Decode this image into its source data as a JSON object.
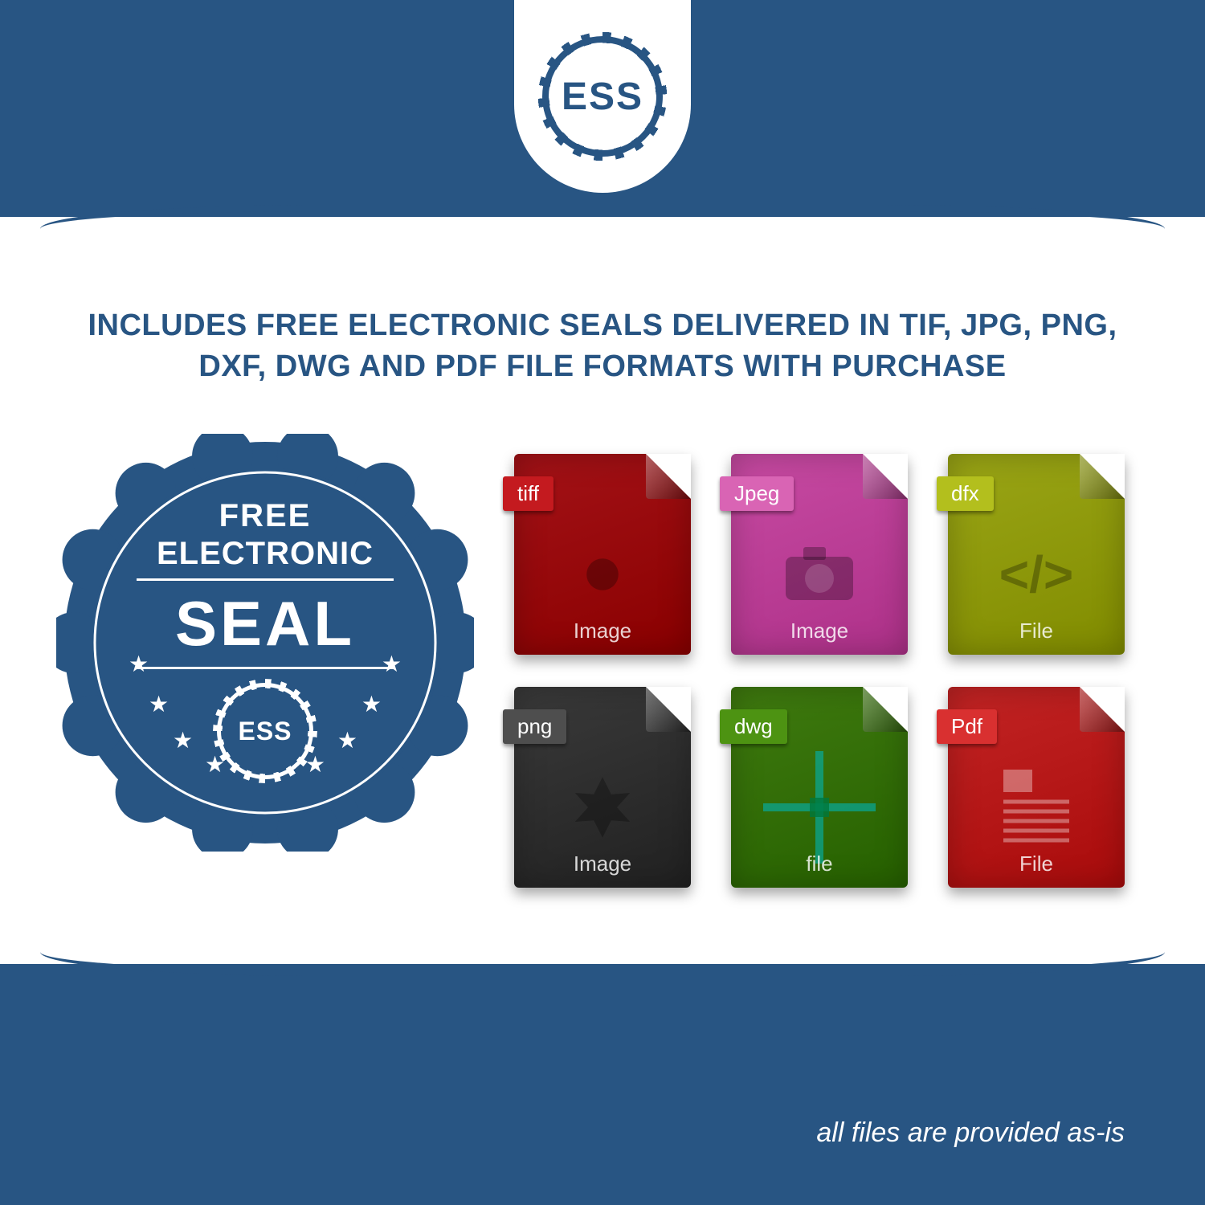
{
  "colors": {
    "primary": "#285583",
    "white": "#ffffff"
  },
  "logo": {
    "text": "ESS"
  },
  "headline": "INCLUDES FREE ELECTRONIC SEALS DELIVERED IN TIF, JPG, PNG, DXF, DWG AND PDF FILE FORMATS WITH PURCHASE",
  "seal": {
    "line1": "FREE",
    "line2": "ELECTRONIC",
    "line3": "SEAL",
    "gear_text": "ESS",
    "badge_color": "#285583",
    "text_color": "#ffffff",
    "star_count": 8
  },
  "files": [
    {
      "label": "tiff",
      "footer": "Image",
      "bg": "#a31217",
      "tab_bg": "#c41a1f",
      "glyph": "gear"
    },
    {
      "label": "Jpeg",
      "footer": "Image",
      "bg": "#c74aa2",
      "tab_bg": "#d964b4",
      "glyph": "camera"
    },
    {
      "label": "dfx",
      "footer": "File",
      "bg": "#9aa516",
      "tab_bg": "#b3bf1d",
      "glyph": "code"
    },
    {
      "label": "png",
      "footer": "Image",
      "bg": "#3a3a3a",
      "tab_bg": "#4e4e4e",
      "glyph": "burst"
    },
    {
      "label": "dwg",
      "footer": "file",
      "bg": "#3f7a0f",
      "tab_bg": "#4d9312",
      "glyph": "cross"
    },
    {
      "label": "Pdf",
      "footer": "File",
      "bg": "#c22424",
      "tab_bg": "#d93030",
      "glyph": "doc"
    }
  ],
  "disclaimer": "all files are provided as-is"
}
